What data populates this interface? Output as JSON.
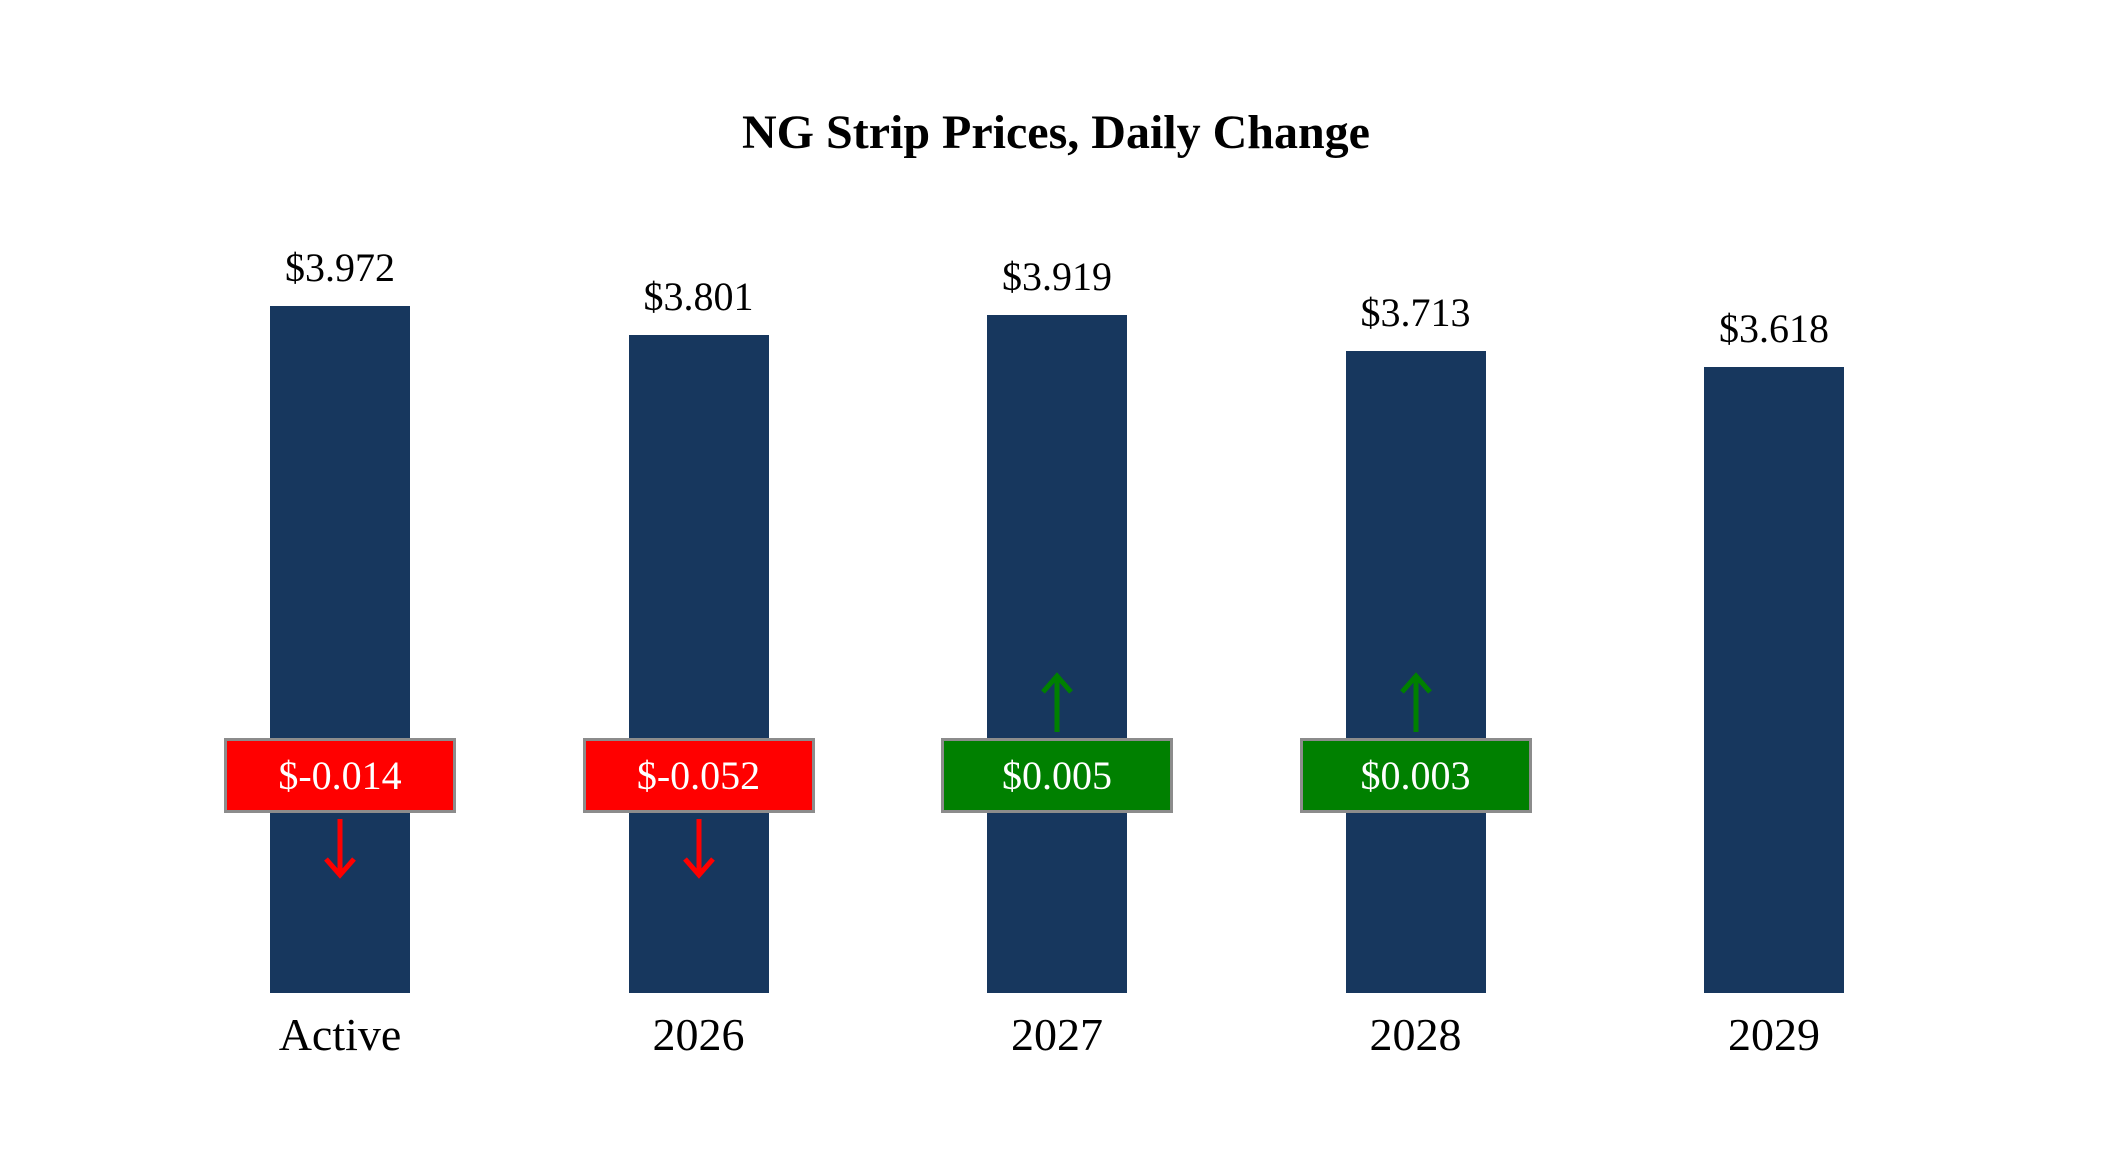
{
  "chart_data": {
    "type": "bar",
    "title": "NG Strip Prices, Daily Change",
    "categories": [
      "Active",
      "2026",
      "2027",
      "2028",
      "2029"
    ],
    "values": [
      3.972,
      3.801,
      3.919,
      3.713,
      3.618
    ],
    "value_labels": [
      "$3.972",
      "$3.801",
      "$3.919",
      "$3.713",
      "$3.618"
    ],
    "changes": [
      -0.014,
      -0.052,
      0.005,
      0.003,
      null
    ],
    "change_labels": [
      "$-0.014",
      "$-0.052",
      "$0.005",
      "$0.003",
      null
    ],
    "xlabel": "",
    "ylabel": "",
    "ylim": [
      0,
      4
    ],
    "grid": false,
    "legend": null,
    "colors": {
      "bar": "#17375E",
      "negative": "#FF0000",
      "positive": "#008000",
      "badge_border": "#8C8C8C",
      "text": "#000000",
      "background": "#FFFFFF"
    }
  }
}
